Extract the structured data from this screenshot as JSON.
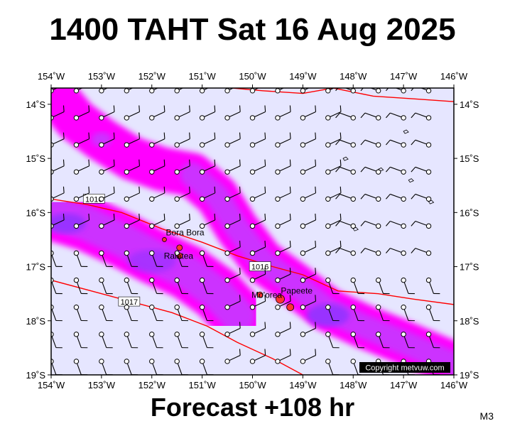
{
  "header": {
    "title": "1400 TAHT Sat 16 Aug 2025"
  },
  "footer": {
    "forecast": "Forecast +108 hr",
    "code": "M3",
    "copyright": "Copyright metvuw.com"
  },
  "map": {
    "lon_range": [
      -154,
      -146
    ],
    "lat_range": [
      -19,
      -13.7
    ],
    "lon_ticks": [
      "154˚W",
      "153˚W",
      "152˚W",
      "151˚W",
      "150˚W",
      "149˚W",
      "148˚W",
      "147˚W",
      "146˚W"
    ],
    "lat_ticks": [
      "14˚S",
      "15˚S",
      "16˚S",
      "17˚S",
      "18˚S",
      "19˚S"
    ],
    "colors": {
      "background": "#e6e6ff",
      "rain_light": "#ff00ff",
      "rain_medium": "#cc33ff",
      "rain_heavy": "#9933ff",
      "isobar": "#ff0000",
      "land": "#ff3333"
    },
    "isobars": [
      {
        "label": "1016",
        "points": [
          [
            -154,
            -15.75
          ],
          [
            -153.3,
            -15.85
          ],
          [
            -152.6,
            -16.0
          ],
          [
            -151.8,
            -16.3
          ],
          [
            -151.0,
            -16.55
          ],
          [
            -150.3,
            -16.8
          ],
          [
            -149.6,
            -17.0
          ],
          [
            -149.0,
            -17.15
          ],
          [
            -148.3,
            -17.45
          ],
          [
            -147.5,
            -17.5
          ],
          [
            -146.8,
            -17.6
          ],
          [
            -146,
            -17.7
          ]
        ],
        "label_positions": [
          [
            -153.15,
            -15.75
          ],
          [
            -149.85,
            -17.0
          ]
        ]
      },
      {
        "label": "1017",
        "points": [
          [
            -154,
            -17.25
          ],
          [
            -153.2,
            -17.45
          ],
          [
            -152.4,
            -17.65
          ],
          [
            -151.6,
            -17.85
          ],
          [
            -150.9,
            -18.1
          ],
          [
            -150.3,
            -18.4
          ],
          [
            -149.6,
            -18.7
          ],
          [
            -149.0,
            -19.0
          ]
        ],
        "label_positions": [
          [
            -152.45,
            -17.65
          ]
        ]
      },
      {
        "label": "",
        "points": [
          [
            -150.4,
            -13.7
          ],
          [
            -149.8,
            -13.75
          ],
          [
            -149.0,
            -13.8
          ],
          [
            -148.4,
            -13.7
          ],
          [
            -147.6,
            -13.85
          ],
          [
            -146.8,
            -13.9
          ],
          [
            -146,
            -13.95
          ]
        ],
        "label_positions": []
      },
      {
        "label": "",
        "points": [
          [
            -153.9,
            -19.0
          ],
          [
            -153.7,
            -19.1
          ]
        ],
        "label_positions": []
      }
    ],
    "places": [
      {
        "name": "Bora Bora",
        "lon": -151.75,
        "lat": -16.5
      },
      {
        "name": "Raiatea",
        "lon": -151.45,
        "lat": -16.8
      },
      {
        "name": "Mo'orea",
        "lon": -149.85,
        "lat": -17.5
      },
      {
        "name": "Papeete",
        "lon": -149.55,
        "lat": -17.55
      }
    ]
  }
}
